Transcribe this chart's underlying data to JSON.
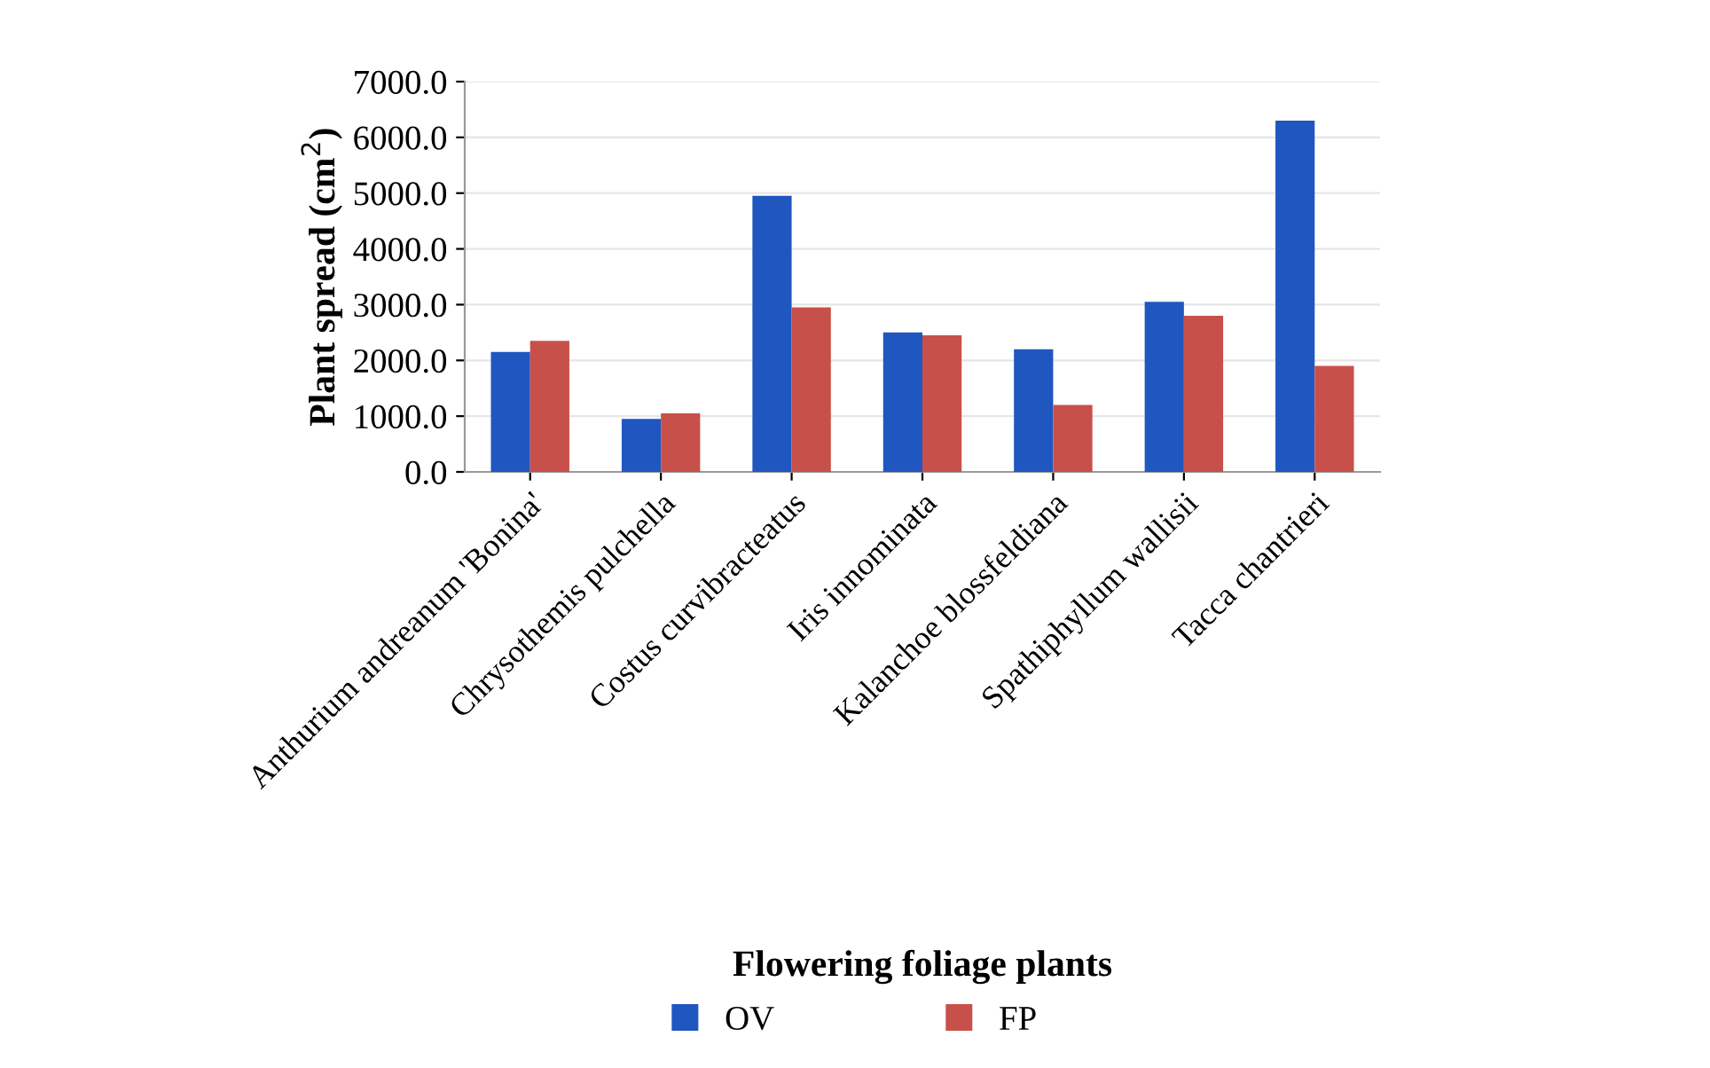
{
  "chart_data": {
    "type": "bar",
    "xlabel": "Flowering foliage plants",
    "ylabel": "Plant spread (cm$^{2}$)",
    "categories": [
      "Anthurium andreanum 'Bonina'",
      "Chrysothemis pulchella",
      "Costus curvibracteatus",
      "Iris innominata",
      "Kalanchoe blossfeldiana",
      "Spathiphyllum wallisii",
      "Tacca chantrieri"
    ],
    "series": [
      {
        "name": "OV",
        "color": "#1f56c0",
        "values": [
          2150,
          950,
          4950,
          2500,
          2200,
          3050,
          6300
        ]
      },
      {
        "name": "FP",
        "color": "#c8504a",
        "values": [
          2350,
          1050,
          2950,
          2450,
          1200,
          2800,
          1900
        ]
      }
    ],
    "ylim": [
      0,
      7000
    ],
    "yticks": [
      {
        "value": 0,
        "label": "0.0"
      },
      {
        "value": 1000,
        "label": "1000.0"
      },
      {
        "value": 2000,
        "label": "2000.0"
      },
      {
        "value": 3000,
        "label": "3000.0"
      },
      {
        "value": 4000,
        "label": "4000.0"
      },
      {
        "value": 5000,
        "label": "5000.0"
      },
      {
        "value": 6000,
        "label": "6000.0"
      },
      {
        "value": 7000,
        "label": "7000.0"
      }
    ],
    "grid": "y",
    "legend": "bottom"
  }
}
